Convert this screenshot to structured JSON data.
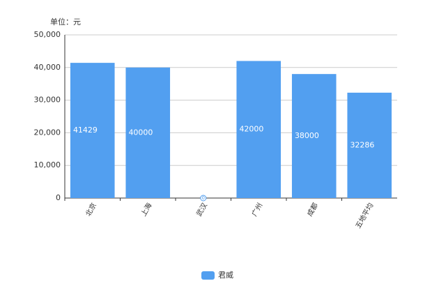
{
  "chart_data": {
    "type": "bar",
    "unit_label": "单位：元",
    "categories": [
      "北京",
      "上海",
      "武汉",
      "广州",
      "成都",
      "五地平均"
    ],
    "series": [
      {
        "name": "君威",
        "color": "#529ff0",
        "values": [
          41429,
          40000,
          0,
          42000,
          38000,
          32286
        ]
      }
    ],
    "ylim": [
      0,
      50000
    ],
    "yticks": [
      0,
      {
        "value": 10000,
        "label": "10,000"
      },
      {
        "value": 20000,
        "label": "20,000"
      },
      {
        "value": 30000,
        "label": "30,000"
      },
      {
        "value": 40000,
        "label": "40,000"
      },
      {
        "value": 50000,
        "label": "50,000"
      }
    ],
    "grid": true,
    "legend": "bottom"
  }
}
